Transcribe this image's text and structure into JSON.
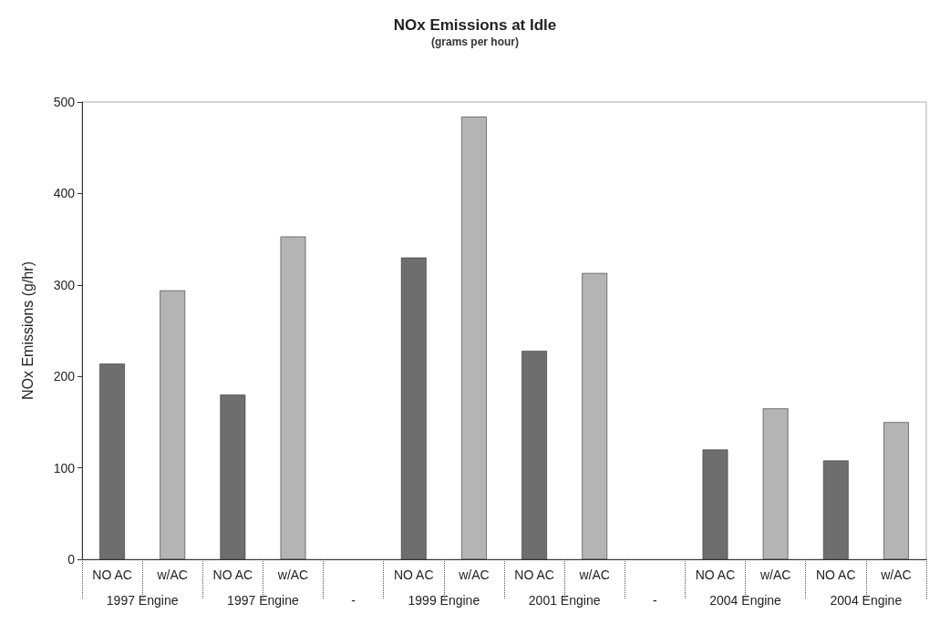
{
  "chart_data": {
    "type": "bar",
    "title": "NOx Emissions at Idle",
    "subtitle": "(grams per hour)",
    "ylabel": "NOx Emissions (g/hr)",
    "categories": [
      "NO AC",
      "w/AC",
      "NO AC",
      "w/AC",
      null,
      "NO AC",
      "w/AC",
      "NO AC",
      "w/AC",
      null,
      "NO AC",
      "w/AC",
      "NO AC",
      "w/AC"
    ],
    "values": [
      214,
      294,
      180,
      353,
      null,
      330,
      484,
      228,
      313,
      null,
      120,
      165,
      108,
      150
    ],
    "colors": [
      "#6e6e6e",
      "#b4b4b4",
      "#6e6e6e",
      "#b4b4b4",
      null,
      "#6e6e6e",
      "#b4b4b4",
      "#6e6e6e",
      "#b4b4b4",
      null,
      "#6e6e6e",
      "#b4b4b4",
      "#6e6e6e",
      "#b4b4b4"
    ],
    "annotations": [
      "1997 Engine",
      "1997 Engine",
      "-",
      "1999 Engine",
      "2001 Engine",
      "-",
      "2004 Engine",
      "2004 Engine"
    ],
    "ylim": [
      0,
      500
    ],
    "yticks": [
      0,
      100,
      200,
      300,
      400,
      500
    ],
    "grid": false
  }
}
